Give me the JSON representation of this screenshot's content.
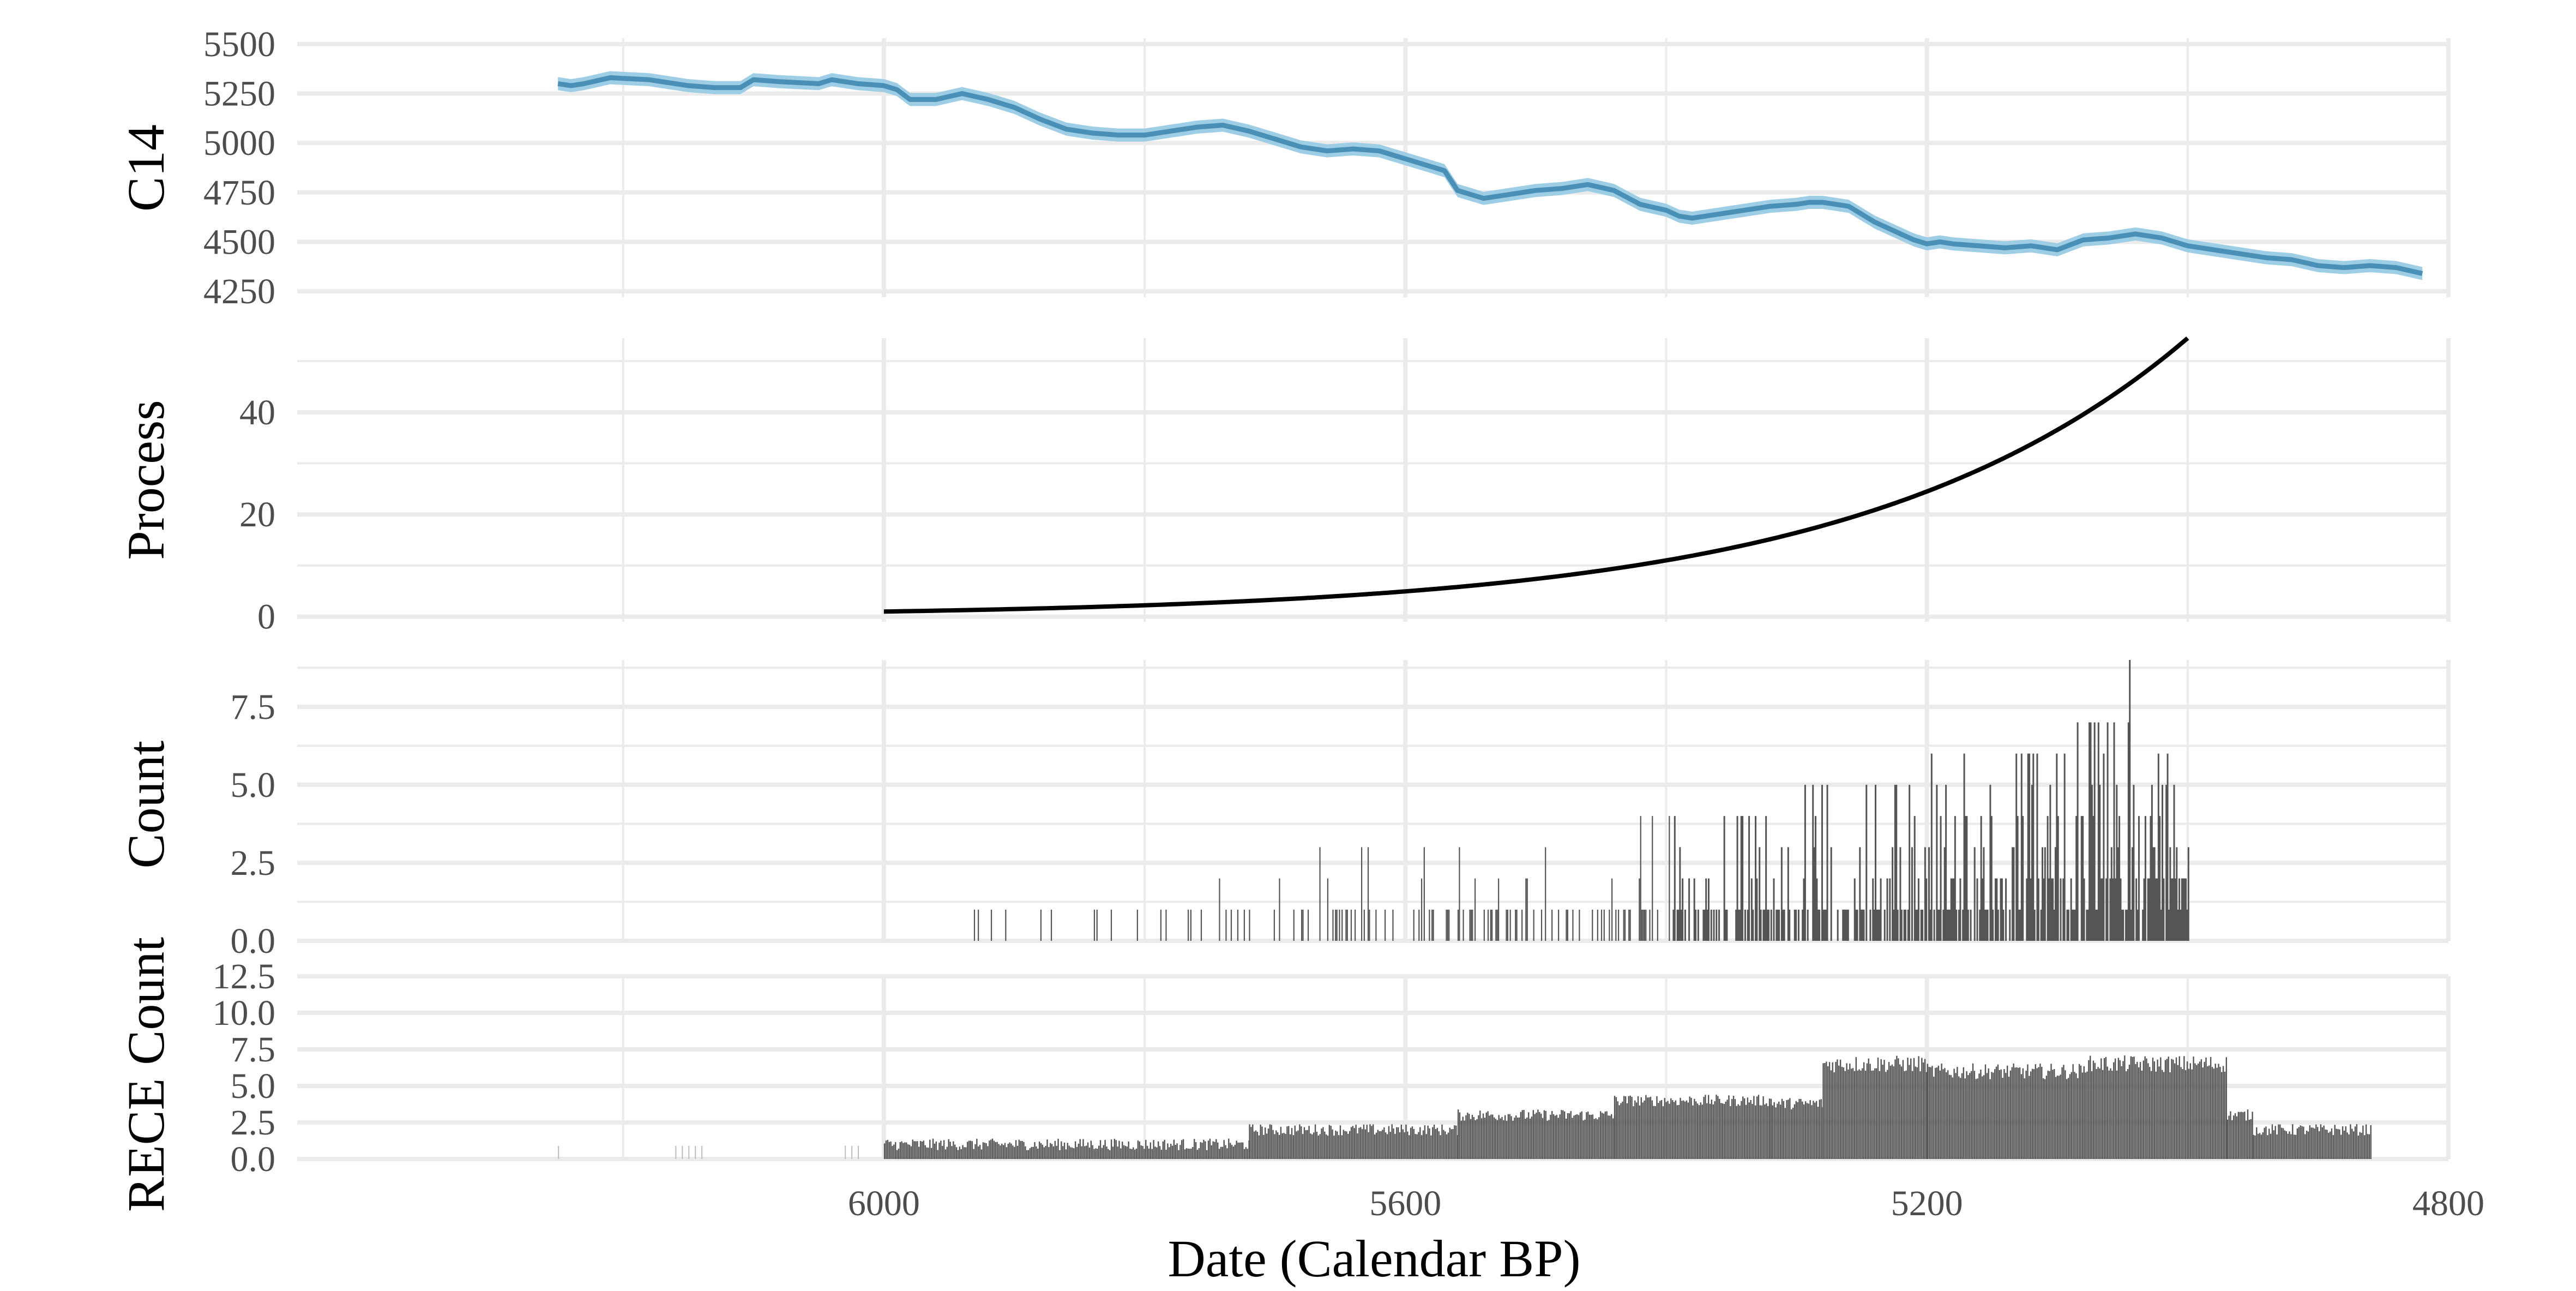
{
  "chart_data": {
    "type": "multi-panel",
    "xlabel": "Date (Calendar BP)",
    "x_reversed": true,
    "xlim": [
      6450,
      4800
    ],
    "x_ticks": [
      6000,
      5600,
      5200,
      4800
    ],
    "x_minor_ticks": [
      6200,
      5800,
      5400,
      5000
    ],
    "grid": true,
    "panels": [
      {
        "id": "c14",
        "type": "line-ribbon",
        "ylabel": "C14",
        "ylim": [
          4220,
          5530
        ],
        "y_ticks": [
          4250,
          4500,
          4750,
          5000,
          5250,
          5500
        ],
        "y_tick_labels": [
          "4250",
          "4500",
          "4750",
          "5000",
          "5250",
          "5500"
        ],
        "x": [
          6250,
          6240,
          6230,
          6210,
          6180,
          6150,
          6130,
          6110,
          6100,
          6080,
          6050,
          6040,
          6020,
          6000,
          5990,
          5980,
          5960,
          5940,
          5920,
          5900,
          5880,
          5860,
          5840,
          5820,
          5800,
          5780,
          5760,
          5740,
          5720,
          5700,
          5680,
          5660,
          5640,
          5620,
          5600,
          5590,
          5580,
          5570,
          5560,
          5540,
          5520,
          5500,
          5480,
          5460,
          5440,
          5420,
          5400,
          5390,
          5380,
          5360,
          5340,
          5320,
          5300,
          5290,
          5280,
          5260,
          5240,
          5220,
          5210,
          5200,
          5190,
          5180,
          5160,
          5140,
          5120,
          5100,
          5080,
          5060,
          5040,
          5020,
          5000,
          4980,
          4960,
          4940,
          4920,
          4900,
          4880,
          4860,
          4840,
          4820
        ],
        "y": [
          5300,
          5290,
          5300,
          5330,
          5320,
          5290,
          5280,
          5280,
          5320,
          5310,
          5300,
          5320,
          5300,
          5290,
          5270,
          5220,
          5220,
          5250,
          5220,
          5180,
          5120,
          5070,
          5050,
          5040,
          5040,
          5060,
          5080,
          5090,
          5060,
          5020,
          4980,
          4960,
          4970,
          4960,
          4920,
          4900,
          4880,
          4860,
          4760,
          4720,
          4740,
          4760,
          4770,
          4790,
          4760,
          4690,
          4660,
          4630,
          4620,
          4640,
          4660,
          4680,
          4690,
          4700,
          4700,
          4680,
          4600,
          4540,
          4510,
          4490,
          4500,
          4490,
          4480,
          4470,
          4480,
          4460,
          4510,
          4520,
          4540,
          4520,
          4480,
          4460,
          4440,
          4420,
          4410,
          4380,
          4370,
          4380,
          4370,
          4340
        ],
        "color": "#4a8fb5",
        "ribbon_color": "#9ecde6"
      },
      {
        "id": "process",
        "type": "line",
        "ylabel": "Process",
        "ylim": [
          -1,
          54.5
        ],
        "y_ticks": [
          0,
          20,
          40
        ],
        "y_tick_labels": [
          "0",
          "20",
          "40"
        ],
        "y_minor_ticks": [
          10,
          30,
          50
        ],
        "curve": {
          "form": "exponential",
          "x_start": 6000,
          "x_end": 5000,
          "y_start": 1,
          "y_end": 54.5
        },
        "color": "#000000"
      },
      {
        "id": "count",
        "type": "bar",
        "ylabel": "Count",
        "ylim": [
          0,
          9
        ],
        "y_ticks": [
          0,
          2.5,
          5,
          7.5
        ],
        "y_tick_labels": [
          "0.0",
          "2.5",
          "5.0",
          "7.5"
        ],
        "y_minor_ticks": [
          1.25,
          3.75,
          6.25,
          8.75
        ],
        "x_range": [
          5990,
          5000
        ],
        "max_value": 9,
        "color": "#555555"
      },
      {
        "id": "rece",
        "type": "bar",
        "ylabel": "RECE Count",
        "ylim": [
          0,
          12.5
        ],
        "y_ticks": [
          0,
          2.5,
          5,
          7.5,
          10,
          12.5
        ],
        "y_tick_labels": [
          "0.0",
          "2.5",
          "5.0",
          "7.5",
          "10.0",
          "12.5"
        ],
        "x_range": [
          6000,
          4860
        ],
        "plateaus": [
          {
            "from": 6000,
            "to": 5720,
            "value": 1
          },
          {
            "from": 5720,
            "to": 5560,
            "value": 2
          },
          {
            "from": 5560,
            "to": 5440,
            "value": 3
          },
          {
            "from": 5440,
            "to": 5320,
            "value": 4
          },
          {
            "from": 5320,
            "to": 5280,
            "value": 3.8
          },
          {
            "from": 5280,
            "to": 5200,
            "value": 6.5
          },
          {
            "from": 5200,
            "to": 5080,
            "value": 6
          },
          {
            "from": 5080,
            "to": 4970,
            "value": 6.5
          },
          {
            "from": 4970,
            "to": 4950,
            "value": 3
          },
          {
            "from": 4950,
            "to": 4860,
            "value": 2
          }
        ],
        "color": "#555555"
      }
    ]
  }
}
